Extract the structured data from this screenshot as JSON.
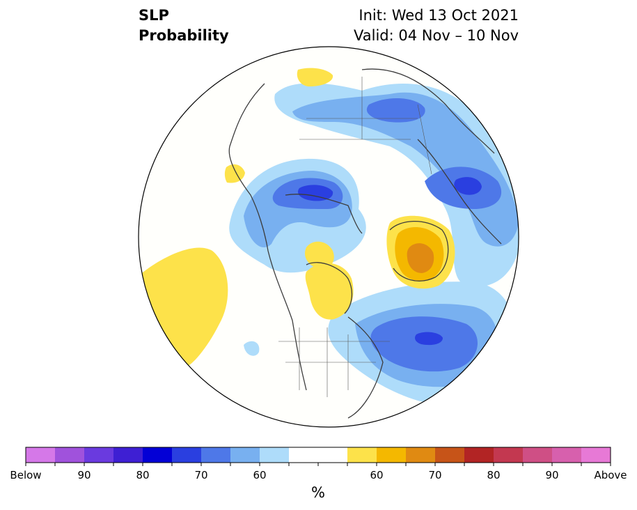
{
  "header": {
    "title_line1": "SLP",
    "title_line2": "Probability",
    "init": "Init: Wed 13 Oct 2021",
    "valid": "Valid: 04 Nov – 10 Nov"
  },
  "colorbar": {
    "units": "%",
    "colors": [
      "#d578e8",
      "#a052dc",
      "#6a3adf",
      "#3e1fd3",
      "#0300d6",
      "#2a3fe0",
      "#4e78e8",
      "#78b0f0",
      "#aedcfa",
      "#ffffff",
      "#ffffff",
      "#fde24a",
      "#f4b800",
      "#e08a12",
      "#c75418",
      "#b22424",
      "#c33850",
      "#cf4f85",
      "#d760ad",
      "#e779d6"
    ],
    "tick_labels": [
      {
        "index": 0,
        "text": "Below"
      },
      {
        "index": 2,
        "text": "90"
      },
      {
        "index": 4,
        "text": "80"
      },
      {
        "index": 6,
        "text": "70"
      },
      {
        "index": 8,
        "text": "60"
      },
      {
        "index": 12,
        "text": "60"
      },
      {
        "index": 14,
        "text": "70"
      },
      {
        "index": 16,
        "text": "80"
      },
      {
        "index": 18,
        "text": "90"
      },
      {
        "index": 20,
        "text": "Above"
      }
    ]
  },
  "map": {
    "projection": "polar stereographic (north)",
    "regions": [
      {
        "name": "north-pacific-above",
        "category": "above-55",
        "color": "#fde24a"
      },
      {
        "name": "canada-above",
        "category": "above-55",
        "color": "#fde24a"
      },
      {
        "name": "greenland-above",
        "category": "above-60",
        "color": "#f4b800"
      },
      {
        "name": "greenland-above-core",
        "category": "above-65",
        "color": "#e08a12"
      },
      {
        "name": "siberia-above",
        "category": "above-55",
        "color": "#fde24a"
      },
      {
        "name": "east-asia-above",
        "category": "above-55",
        "color": "#fde24a"
      },
      {
        "name": "atlantic-below",
        "category": "below-70",
        "color": "#4e78e8"
      },
      {
        "name": "atlantic-below-core",
        "category": "below-80",
        "color": "#2a3fe0"
      },
      {
        "name": "europe-below",
        "category": "below-70",
        "color": "#4e78e8"
      },
      {
        "name": "arctic-siberia-below",
        "category": "below-65",
        "color": "#78b0f0"
      },
      {
        "name": "asia-below",
        "category": "below-65",
        "color": "#78b0f0"
      }
    ]
  }
}
